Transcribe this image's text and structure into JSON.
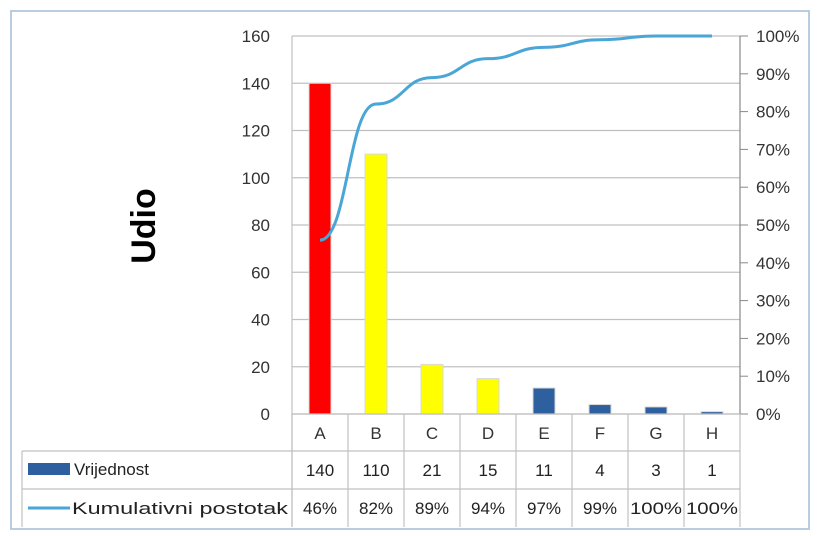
{
  "chart_data": {
    "type": "bar",
    "ylabel": "Udio",
    "categories": [
      "A",
      "B",
      "C",
      "D",
      "E",
      "F",
      "G",
      "H"
    ],
    "ylim": [
      0,
      160
    ],
    "yticks": [
      "0",
      "20",
      "40",
      "60",
      "80",
      "100",
      "120",
      "140",
      "160"
    ],
    "y2lim": [
      0,
      100
    ],
    "y2ticks": [
      "0%",
      "10%",
      "20%",
      "30%",
      "40%",
      "50%",
      "60%",
      "70%",
      "80%",
      "90%",
      "100%"
    ],
    "grid": true,
    "series": [
      {
        "name": "Vrijednost",
        "type": "bar",
        "values": [
          140,
          110,
          21,
          15,
          11,
          4,
          3,
          1
        ],
        "labels": [
          "140",
          "110",
          "21",
          "15",
          "11",
          "4",
          "3",
          "1"
        ],
        "colors": [
          "#ff0000",
          "#ffff00",
          "#ffff00",
          "#ffff00",
          "#2e5f9e",
          "#2e5f9e",
          "#2e5f9e",
          "#2e5f9e"
        ]
      },
      {
        "name": "Kumulativni postotak",
        "type": "line",
        "axis": "secondary",
        "values": [
          46,
          82,
          89,
          94,
          97,
          99,
          100,
          100
        ],
        "labels": [
          "46%",
          "82%",
          "89%",
          "94%",
          "97%",
          "99%",
          "100%",
          "100%"
        ],
        "color": "#4aa6d6"
      }
    ]
  },
  "colors": {
    "grid": "#c0c0c0",
    "frame": "#b9cde0",
    "legend_bar": "#2e5f9e",
    "line": "#4aa6d6"
  }
}
